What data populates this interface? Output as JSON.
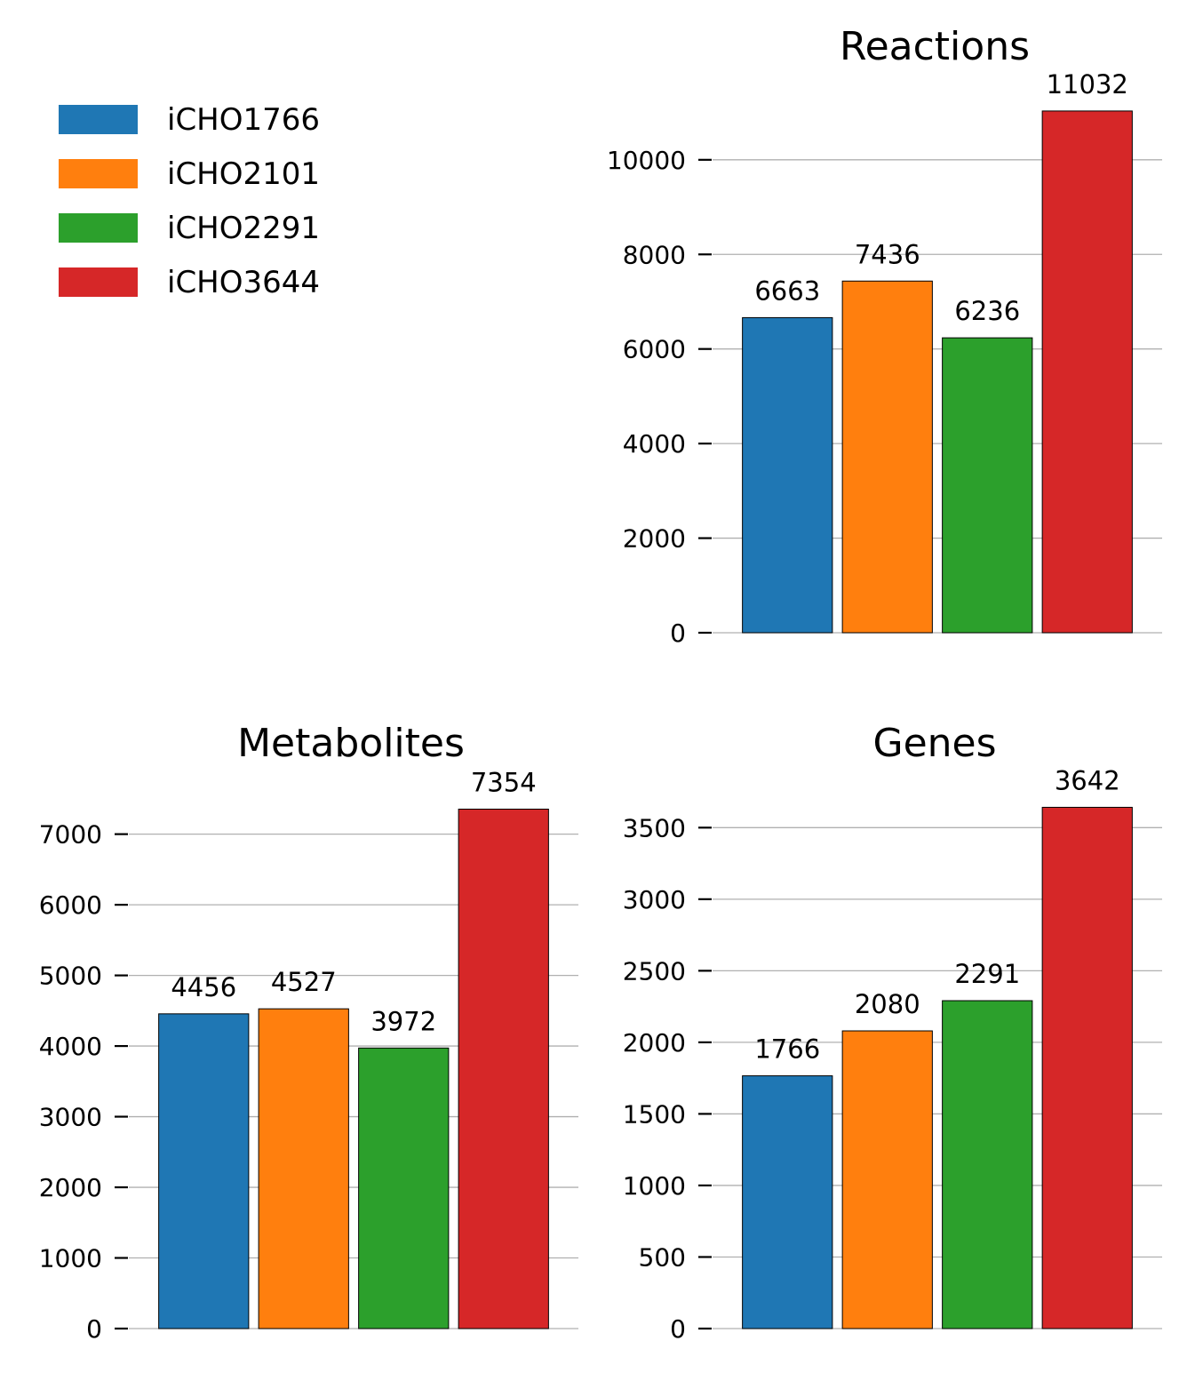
{
  "legend": {
    "items": [
      {
        "label": "iCHO1766",
        "color": "#1f77b4"
      },
      {
        "label": "iCHO2101",
        "color": "#ff7f0e"
      },
      {
        "label": "iCHO2291",
        "color": "#2ca02c"
      },
      {
        "label": "iCHO3644",
        "color": "#d62728"
      }
    ]
  },
  "chart_data": [
    {
      "type": "bar",
      "title": "Reactions",
      "categories": [
        "iCHO1766",
        "iCHO2101",
        "iCHO2291",
        "iCHO3644"
      ],
      "values": [
        6663,
        7436,
        6236,
        11032
      ],
      "data_labels": [
        "6663",
        "7436",
        "6236",
        "11032"
      ],
      "ylim": [
        0,
        11500
      ],
      "yticks": [
        0,
        2000,
        4000,
        6000,
        8000,
        10000
      ],
      "ytick_labels": [
        "0",
        "2000",
        "4000",
        "6000",
        "8000",
        "10000"
      ],
      "grid": "y",
      "xlabel": "",
      "ylabel": ""
    },
    {
      "type": "bar",
      "title": "Metabolites",
      "categories": [
        "iCHO1766",
        "iCHO2101",
        "iCHO2291",
        "iCHO3644"
      ],
      "values": [
        4456,
        4527,
        3972,
        7354
      ],
      "data_labels": [
        "4456",
        "4527",
        "3972",
        "7354"
      ],
      "ylim": [
        0,
        7700
      ],
      "yticks": [
        0,
        1000,
        2000,
        3000,
        4000,
        5000,
        6000,
        7000
      ],
      "ytick_labels": [
        "0",
        "1000",
        "2000",
        "3000",
        "4000",
        "5000",
        "6000",
        "7000"
      ],
      "grid": "y",
      "xlabel": "",
      "ylabel": ""
    },
    {
      "type": "bar",
      "title": "Genes",
      "categories": [
        "iCHO1766",
        "iCHO2101",
        "iCHO2291",
        "iCHO3644"
      ],
      "values": [
        1766,
        2080,
        2291,
        3642
      ],
      "data_labels": [
        "1766",
        "2080",
        "2291",
        "3642"
      ],
      "ylim": [
        0,
        3800
      ],
      "yticks": [
        0,
        500,
        1000,
        1500,
        2000,
        2500,
        3000,
        3500
      ],
      "ytick_labels": [
        "0",
        "500",
        "1000",
        "1500",
        "2000",
        "2500",
        "3000",
        "3500"
      ],
      "grid": "y",
      "xlabel": "",
      "ylabel": ""
    }
  ],
  "colors": {
    "grid": "#b0b0b0",
    "bar_edge": "#000000",
    "text": "#000000"
  }
}
